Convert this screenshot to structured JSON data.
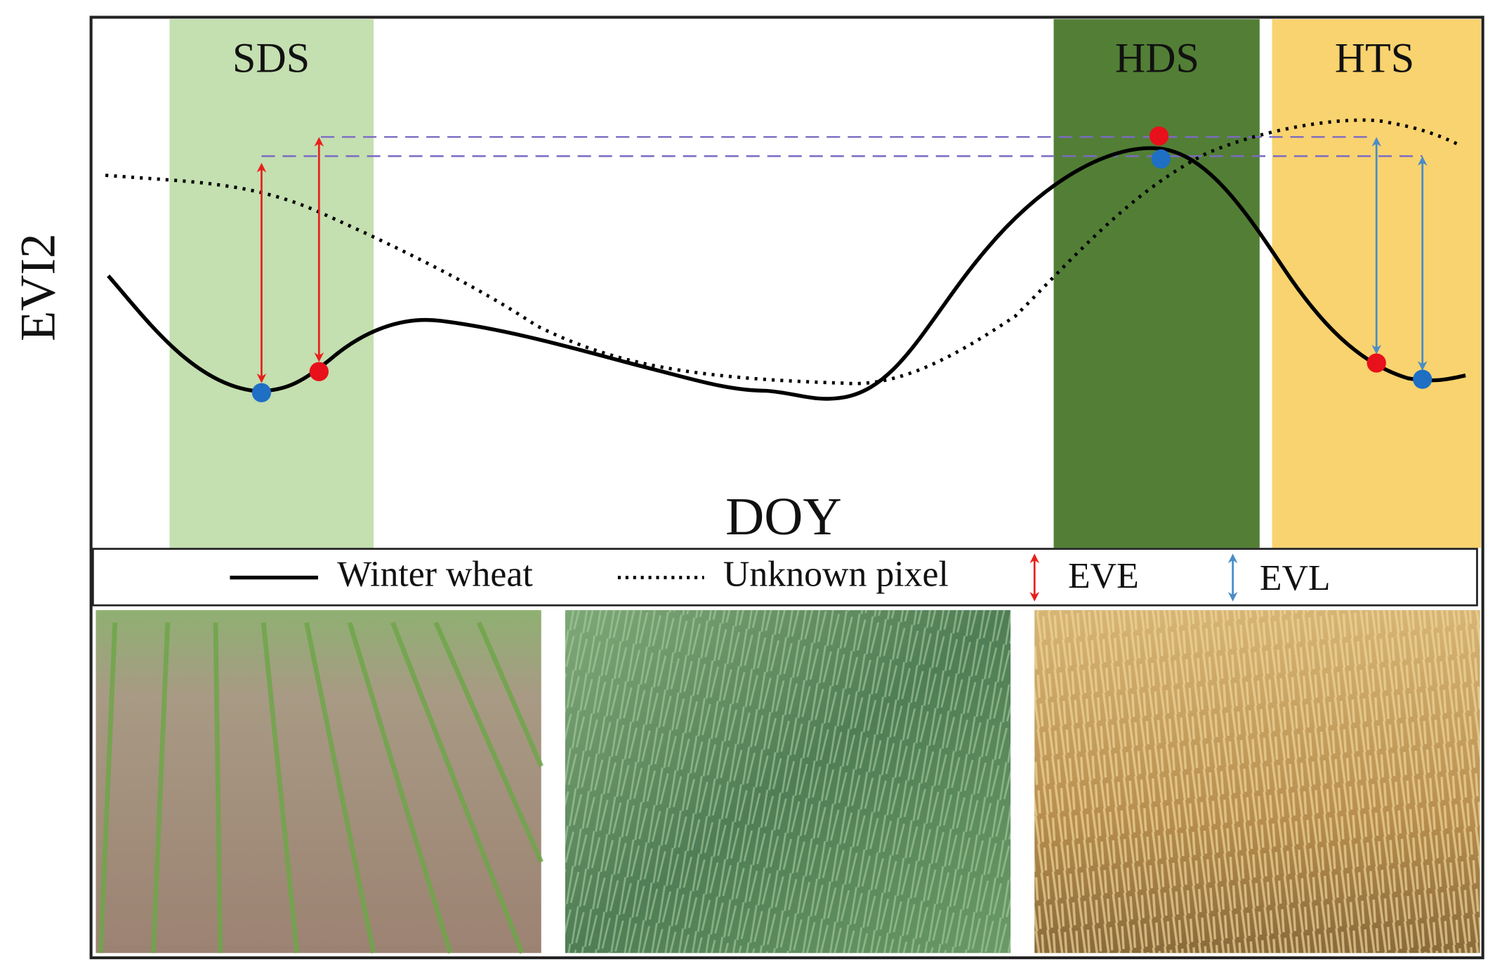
{
  "bands": [
    {
      "label": "SDS"
    },
    {
      "label": "HDS"
    },
    {
      "label": "HTS"
    }
  ],
  "axes": {
    "y_label": "EVI2",
    "x_label": "DOY"
  },
  "legend": [
    {
      "label": "Winter wheat"
    },
    {
      "label": "Unknown pixel"
    },
    {
      "label": "EVE"
    },
    {
      "label": "EVL"
    }
  ]
}
